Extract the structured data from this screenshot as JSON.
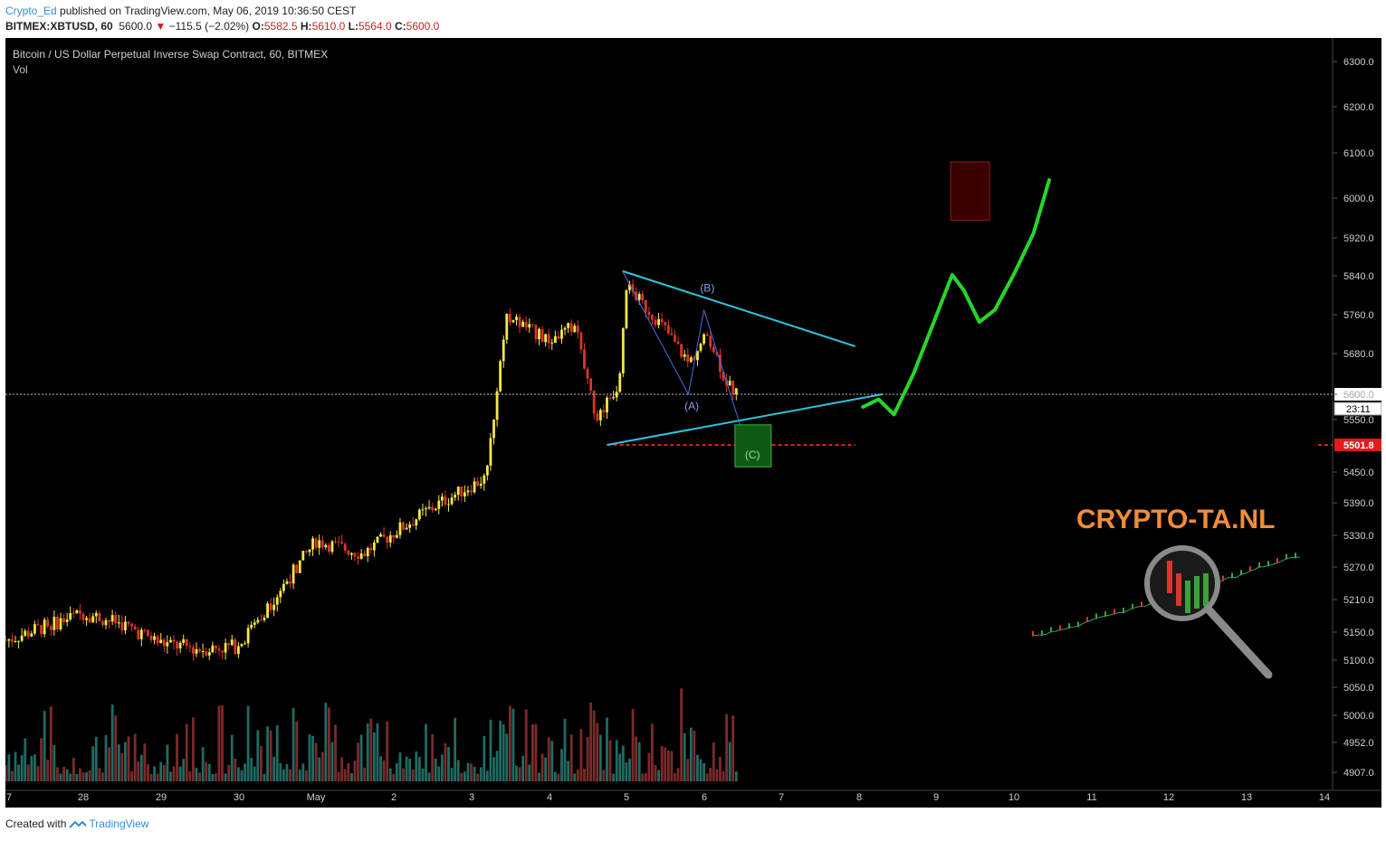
{
  "header": {
    "user": "Crypto_Ed",
    "published_text": " published on TradingView.com, May 06, 2019 10:36:50 CEST",
    "symbol_line": "BITMEX:XBTUSD, 60",
    "last": "5600.0",
    "change": "−115.5 (−2.02%)",
    "o_label": "O:",
    "o_val": "5582.5",
    "h_label": "H:",
    "h_val": "5610.0",
    "l_label": "L:",
    "l_val": "5564.0",
    "c_label": "C:",
    "c_val": "5600.0"
  },
  "footer": {
    "created_with": "Created with",
    "brand": "TradingView"
  },
  "colors": {
    "up": "#f6e84a",
    "down": "#d8362a",
    "vol_up": "#1f6b63",
    "vol_down": "#7a2b2a",
    "trend": "#2fc4de",
    "proj": "#27d628",
    "target_box": "#3a0000",
    "support": "#e21b1b"
  },
  "chart_data": {
    "type": "candlestick",
    "title": "Bitcoin / US Dollar Perpetual Inverse Swap Contract, 60, BITMEX",
    "indicator": "Vol",
    "x_ticks": [
      "7",
      "28",
      "29",
      "30",
      "May",
      "2",
      "3",
      "4",
      "5",
      "6",
      "7",
      "8",
      "9",
      "10",
      "11",
      "12",
      "13",
      "14"
    ],
    "y_ticks": [
      "6300.0",
      "6200.0",
      "6100.0",
      "6000.0",
      "5920.0",
      "5840.0",
      "5760.0",
      "5680.0",
      "5600.0",
      "5550.0",
      "5450.0",
      "5390.0",
      "5330.0",
      "5270.0",
      "5210.0",
      "5150.0",
      "5100.0",
      "5050.0",
      "5000.0",
      "4952.0",
      "4907.0"
    ],
    "ylim": [
      4880,
      6330
    ],
    "close_path_day_anchors": [
      {
        "day": 27,
        "close": 5135
      },
      {
        "day": 27.5,
        "close": 5160
      },
      {
        "day": 28,
        "close": 5185
      },
      {
        "day": 28.5,
        "close": 5165
      },
      {
        "day": 29,
        "close": 5130
      },
      {
        "day": 29.5,
        "close": 5120
      },
      {
        "day": 30,
        "close": 5125
      },
      {
        "day": 30.5,
        "close": 5220
      },
      {
        "day": 31,
        "close": 5320
      },
      {
        "day": 31.6,
        "close": 5295
      },
      {
        "day": 32,
        "close": 5335
      },
      {
        "day": 32.6,
        "close": 5390
      },
      {
        "day": 33.2,
        "close": 5440
      },
      {
        "day": 33.45,
        "close": 5760
      },
      {
        "day": 34.0,
        "close": 5705
      },
      {
        "day": 34.35,
        "close": 5740
      },
      {
        "day": 34.6,
        "close": 5550
      },
      {
        "day": 34.9,
        "close": 5620
      },
      {
        "day": 35.0,
        "close": 5820
      },
      {
        "day": 35.5,
        "close": 5730
      },
      {
        "day": 35.8,
        "close": 5660
      },
      {
        "day": 36.05,
        "close": 5720
      },
      {
        "day": 36.3,
        "close": 5620
      },
      {
        "day": 36.43,
        "close": 5600
      }
    ],
    "current_price": 5600.0,
    "current_price_label": "5600.0",
    "countdown": "23:11",
    "support_level": 5501.8,
    "support_label": "5501.8",
    "annotations": {
      "wave_a": "(A)",
      "wave_b": "(B)",
      "wave_c": "(C)",
      "watermark": "CRYPTO-TA.NL"
    }
  }
}
